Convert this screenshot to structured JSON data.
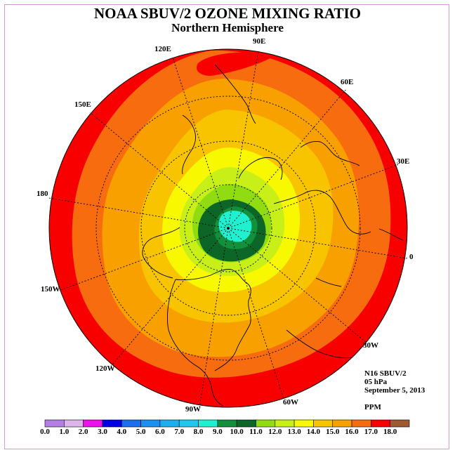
{
  "title": "NOAA SBUV/2 OZONE MIXING RATIO",
  "subtitle": "Northern Hemisphere",
  "longitude_labels": [
    "90E",
    "60E",
    "30E",
    "0",
    "30W",
    "60W",
    "90W",
    "120W",
    "150W",
    "180",
    "150E",
    "120E"
  ],
  "info": {
    "instrument": "N16 SBUV/2",
    "level": "05 hPa",
    "date": "September 5, 2013",
    "units": "PPM"
  },
  "colorbar": {
    "ticks": [
      "0.0",
      "1.0",
      "2.0",
      "3.0",
      "4.0",
      "5.0",
      "6.0",
      "7.0",
      "8.0",
      "9.0",
      "10.0",
      "11.0",
      "12.0",
      "13.0",
      "14.0",
      "15.0",
      "16.0",
      "17.0",
      "18.0"
    ],
    "colors": [
      "#b47ee6",
      "#dcb4ec",
      "#ee10ee",
      "#0000e6",
      "#1a6ef0",
      "#1a90f0",
      "#1ab0f0",
      "#20c8f0",
      "#20f0d0",
      "#12903c",
      "#0c6628",
      "#90dc10",
      "#c8f018",
      "#f8f800",
      "#f8c400",
      "#f8a000",
      "#f86c10",
      "#f80000",
      "#a05a32"
    ]
  }
}
